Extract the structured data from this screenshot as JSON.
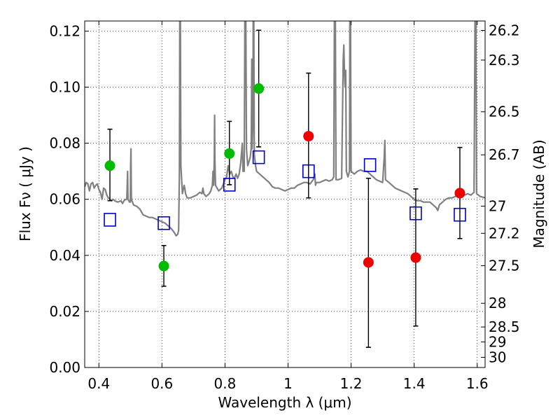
{
  "chart_data": {
    "type": "scatter",
    "title": "",
    "xlabel": "Wavelength  λ (μm)",
    "ylabel": "Flux  Fν  ( μJy )",
    "ylabel_right": "Magnitude (AB)",
    "xlim": [
      0.355,
      1.625
    ],
    "ylim": [
      0.0,
      0.1236
    ],
    "grid": true,
    "grid_style": "dotted",
    "x_ticks": [
      {
        "value": 0.4,
        "label": "0.4"
      },
      {
        "value": 0.6,
        "label": "0.6"
      },
      {
        "value": 0.8,
        "label": "0.8"
      },
      {
        "value": 1.0,
        "label": "1"
      },
      {
        "value": 1.2,
        "label": "1.2"
      },
      {
        "value": 1.4,
        "label": "1.4"
      },
      {
        "value": 1.6,
        "label": "1.6"
      }
    ],
    "y_ticks": [
      {
        "value": 0.0,
        "label": "0.00"
      },
      {
        "value": 0.02,
        "label": "0.02"
      },
      {
        "value": 0.04,
        "label": "0.04"
      },
      {
        "value": 0.06,
        "label": "0.06"
      },
      {
        "value": 0.08,
        "label": "0.08"
      },
      {
        "value": 0.1,
        "label": "0.10"
      },
      {
        "value": 0.12,
        "label": "0.12"
      }
    ],
    "mag_ticks": [
      {
        "mag": 26.2,
        "label": "26.2"
      },
      {
        "mag": 26.3,
        "label": "26.3"
      },
      {
        "mag": 26.5,
        "label": "26.5"
      },
      {
        "mag": 26.7,
        "label": "26.7"
      },
      {
        "mag": 27.0,
        "label": "27"
      },
      {
        "mag": 27.2,
        "label": "27.2"
      },
      {
        "mag": 27.5,
        "label": "27.5"
      },
      {
        "mag": 28.0,
        "label": "28"
      },
      {
        "mag": 28.5,
        "label": "28.5"
      },
      {
        "mag": 29.0,
        "label": "29"
      },
      {
        "mag": 30.0,
        "label": "30"
      }
    ],
    "colors": {
      "green": "#00bb00",
      "red": "#ee0000",
      "model": "#808080",
      "blue": "#0000cc",
      "errorbar": "#000000"
    },
    "series": [
      {
        "kind": "measurements",
        "color": "green",
        "points": [
          {
            "x": 0.435,
            "y": 0.072,
            "ylo": 0.0595,
            "yhi": 0.085
          },
          {
            "x": 0.606,
            "y": 0.0362,
            "ylo": 0.029,
            "yhi": 0.0435
          },
          {
            "x": 0.814,
            "y": 0.0763,
            "ylo": 0.0652,
            "yhi": 0.0878
          },
          {
            "x": 0.907,
            "y": 0.0995,
            "ylo": 0.0787,
            "yhi": 0.1203
          }
        ]
      },
      {
        "kind": "measurements",
        "color": "red",
        "points": [
          {
            "x": 1.065,
            "y": 0.0825,
            "ylo": 0.0605,
            "yhi": 0.105
          },
          {
            "x": 1.255,
            "y": 0.0375,
            "ylo": 0.0072,
            "yhi": 0.0675
          },
          {
            "x": 1.405,
            "y": 0.0392,
            "ylo": 0.0148,
            "yhi": 0.0637
          },
          {
            "x": 1.545,
            "y": 0.0622,
            "ylo": 0.046,
            "yhi": 0.0785
          }
        ]
      },
      {
        "kind": "model_photometry",
        "color": "blue",
        "marker": "open-square",
        "points": [
          {
            "x": 0.435,
            "y": 0.0527
          },
          {
            "x": 0.606,
            "y": 0.0515
          },
          {
            "x": 0.814,
            "y": 0.0652
          },
          {
            "x": 0.907,
            "y": 0.075
          },
          {
            "x": 1.065,
            "y": 0.07
          },
          {
            "x": 1.26,
            "y": 0.0722
          },
          {
            "x": 1.405,
            "y": 0.055
          },
          {
            "x": 1.545,
            "y": 0.0545
          }
        ]
      },
      {
        "kind": "model_spectrum",
        "color": "model",
        "points": [
          [
            0.355,
            0.0645
          ],
          [
            0.36,
            0.066
          ],
          [
            0.365,
            0.0655
          ],
          [
            0.37,
            0.063
          ],
          [
            0.375,
            0.0655
          ],
          [
            0.38,
            0.066
          ],
          [
            0.385,
            0.064
          ],
          [
            0.39,
            0.065
          ],
          [
            0.395,
            0.0655
          ],
          [
            0.4,
            0.0635
          ],
          [
            0.405,
            0.0625
          ],
          [
            0.41,
            0.06
          ],
          [
            0.415,
            0.064
          ],
          [
            0.42,
            0.0635
          ],
          [
            0.425,
            0.0615
          ],
          [
            0.43,
            0.0605
          ],
          [
            0.435,
            0.06
          ],
          [
            0.44,
            0.0595
          ],
          [
            0.445,
            0.06
          ],
          [
            0.45,
            0.0595
          ],
          [
            0.46,
            0.059
          ],
          [
            0.47,
            0.0595
          ],
          [
            0.475,
            0.0585
          ],
          [
            0.48,
            0.0595
          ],
          [
            0.485,
            0.06
          ],
          [
            0.4885,
            0.06
          ],
          [
            0.4895,
            0.064
          ],
          [
            0.491,
            0.07
          ],
          [
            0.4925,
            0.06
          ],
          [
            0.497,
            0.059
          ],
          [
            0.4997,
            0.059
          ],
          [
            0.5007,
            0.072
          ],
          [
            0.5017,
            0.078
          ],
          [
            0.503,
            0.06
          ],
          [
            0.51,
            0.058
          ],
          [
            0.52,
            0.0575
          ],
          [
            0.53,
            0.0565
          ],
          [
            0.54,
            0.0545
          ],
          [
            0.55,
            0.054
          ],
          [
            0.56,
            0.0535
          ],
          [
            0.57,
            0.0535
          ],
          [
            0.58,
            0.053
          ],
          [
            0.59,
            0.0525
          ],
          [
            0.6,
            0.052
          ],
          [
            0.61,
            0.0515
          ],
          [
            0.62,
            0.0505
          ],
          [
            0.63,
            0.0495
          ],
          [
            0.64,
            0.048
          ],
          [
            0.645,
            0.047
          ],
          [
            0.65,
            0.0475
          ],
          [
            0.653,
            0.049
          ],
          [
            0.6555,
            0.07
          ],
          [
            0.6565,
            0.124
          ],
          [
            0.6585,
            0.124
          ],
          [
            0.66,
            0.072
          ],
          [
            0.665,
            0.062
          ],
          [
            0.6705,
            0.065
          ],
          [
            0.6725,
            0.064
          ],
          [
            0.675,
            0.062
          ],
          [
            0.68,
            0.0605
          ],
          [
            0.69,
            0.0605
          ],
          [
            0.7,
            0.061
          ],
          [
            0.71,
            0.0615
          ],
          [
            0.72,
            0.0625
          ],
          [
            0.727,
            0.062
          ],
          [
            0.73,
            0.064
          ],
          [
            0.733,
            0.062
          ],
          [
            0.74,
            0.061
          ],
          [
            0.75,
            0.062
          ],
          [
            0.755,
            0.063
          ],
          [
            0.76,
            0.065
          ],
          [
            0.762,
            0.07
          ],
          [
            0.764,
            0.065
          ],
          [
            0.766,
            0.074
          ],
          [
            0.767,
            0.09
          ],
          [
            0.768,
            0.074
          ],
          [
            0.77,
            0.065
          ],
          [
            0.78,
            0.063
          ],
          [
            0.79,
            0.064
          ],
          [
            0.8,
            0.067
          ],
          [
            0.805,
            0.068
          ],
          [
            0.81,
            0.072
          ],
          [
            0.815,
            0.069
          ],
          [
            0.82,
            0.07
          ],
          [
            0.825,
            0.068
          ],
          [
            0.83,
            0.0675
          ],
          [
            0.835,
            0.069
          ],
          [
            0.84,
            0.0675
          ],
          [
            0.845,
            0.069
          ],
          [
            0.85,
            0.073
          ],
          [
            0.855,
            0.08
          ],
          [
            0.857,
            0.07
          ],
          [
            0.861,
            0.07
          ],
          [
            0.863,
            0.124
          ],
          [
            0.866,
            0.124
          ],
          [
            0.868,
            0.078
          ],
          [
            0.872,
            0.072
          ],
          [
            0.875,
            0.073
          ],
          [
            0.88,
            0.075
          ],
          [
            0.883,
            0.078
          ],
          [
            0.884,
            0.093
          ],
          [
            0.885,
            0.11
          ],
          [
            0.886,
            0.078
          ],
          [
            0.889,
            0.09
          ],
          [
            0.8895,
            0.124
          ],
          [
            0.8915,
            0.124
          ],
          [
            0.893,
            0.076
          ],
          [
            0.897,
            0.072
          ],
          [
            0.9,
            0.07
          ],
          [
            0.91,
            0.069
          ],
          [
            0.92,
            0.068
          ],
          [
            0.93,
            0.067
          ],
          [
            0.94,
            0.066
          ],
          [
            0.95,
            0.0645
          ],
          [
            0.96,
            0.064
          ],
          [
            0.97,
            0.064
          ],
          [
            0.98,
            0.0635
          ],
          [
            0.99,
            0.063
          ],
          [
            1.0,
            0.0635
          ],
          [
            1.01,
            0.064
          ],
          [
            1.02,
            0.064
          ],
          [
            1.03,
            0.065
          ],
          [
            1.04,
            0.0655
          ],
          [
            1.05,
            0.066
          ],
          [
            1.06,
            0.066
          ],
          [
            1.07,
            0.0655
          ],
          [
            1.08,
            0.067
          ],
          [
            1.085,
            0.069
          ],
          [
            1.087,
            0.065
          ],
          [
            1.09,
            0.066
          ],
          [
            1.1,
            0.066
          ],
          [
            1.11,
            0.0665
          ],
          [
            1.12,
            0.067
          ],
          [
            1.13,
            0.0665
          ],
          [
            1.14,
            0.067
          ],
          [
            1.145,
            0.068
          ],
          [
            1.147,
            0.124
          ],
          [
            1.15,
            0.124
          ],
          [
            1.152,
            0.067
          ],
          [
            1.16,
            0.067
          ],
          [
            1.17,
            0.0675
          ],
          [
            1.175,
            0.11
          ],
          [
            1.177,
            0.115
          ],
          [
            1.179,
            0.105
          ],
          [
            1.181,
            0.1
          ],
          [
            1.183,
            0.106
          ],
          [
            1.185,
            0.07
          ],
          [
            1.19,
            0.068
          ],
          [
            1.195,
            0.07
          ],
          [
            1.196,
            0.124
          ],
          [
            1.198,
            0.124
          ],
          [
            1.2,
            0.07
          ],
          [
            1.21,
            0.069
          ],
          [
            1.22,
            0.07
          ],
          [
            1.23,
            0.0705
          ],
          [
            1.24,
            0.07
          ],
          [
            1.25,
            0.07
          ],
          [
            1.26,
            0.069
          ],
          [
            1.27,
            0.068
          ],
          [
            1.28,
            0.067
          ],
          [
            1.29,
            0.0665
          ],
          [
            1.3,
            0.066
          ],
          [
            1.305,
            0.075
          ],
          [
            1.307,
            0.081
          ],
          [
            1.309,
            0.067
          ],
          [
            1.32,
            0.066
          ],
          [
            1.33,
            0.065
          ],
          [
            1.34,
            0.064
          ],
          [
            1.35,
            0.0635
          ],
          [
            1.36,
            0.063
          ],
          [
            1.37,
            0.0625
          ],
          [
            1.38,
            0.062
          ],
          [
            1.39,
            0.061
          ],
          [
            1.4,
            0.06
          ],
          [
            1.41,
            0.0595
          ],
          [
            1.42,
            0.0595
          ],
          [
            1.43,
            0.059
          ],
          [
            1.44,
            0.059
          ],
          [
            1.45,
            0.059
          ],
          [
            1.46,
            0.058
          ],
          [
            1.47,
            0.057
          ],
          [
            1.475,
            0.056
          ],
          [
            1.48,
            0.058
          ],
          [
            1.49,
            0.059
          ],
          [
            1.5,
            0.06
          ],
          [
            1.51,
            0.0605
          ],
          [
            1.52,
            0.0605
          ],
          [
            1.53,
            0.061
          ],
          [
            1.54,
            0.0615
          ],
          [
            1.55,
            0.0615
          ],
          [
            1.56,
            0.0615
          ],
          [
            1.57,
            0.062
          ],
          [
            1.58,
            0.0615
          ],
          [
            1.59,
            0.0625
          ],
          [
            1.593,
            0.124
          ],
          [
            1.596,
            0.124
          ],
          [
            1.598,
            0.062
          ],
          [
            1.61,
            0.061
          ],
          [
            1.625,
            0.0605
          ]
        ]
      }
    ]
  }
}
